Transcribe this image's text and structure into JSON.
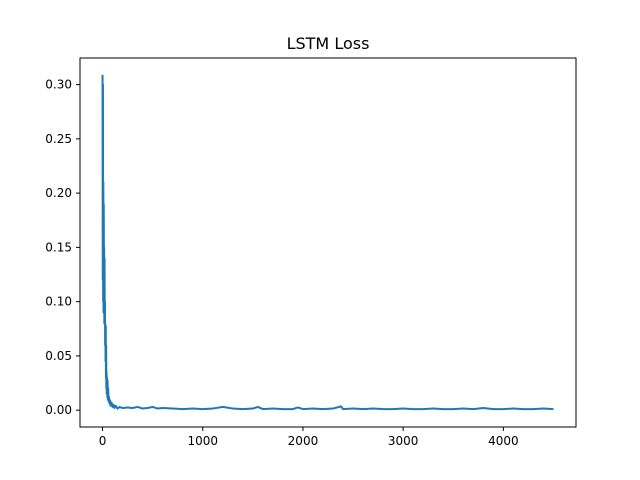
{
  "chart_data": {
    "type": "line",
    "title": "LSTM Loss",
    "xlabel": "",
    "ylabel": "",
    "xlim": [
      -225,
      4725
    ],
    "ylim": [
      -0.0155,
      0.3245
    ],
    "grid": false,
    "legend": "none",
    "x_ticks": [
      0,
      1000,
      2000,
      3000,
      4000
    ],
    "x_tick_labels": [
      "0",
      "1000",
      "2000",
      "3000",
      "4000"
    ],
    "y_ticks": [
      0.0,
      0.05,
      0.1,
      0.15,
      0.2,
      0.25,
      0.3
    ],
    "y_tick_labels": [
      "0.00",
      "0.05",
      "0.10",
      "0.15",
      "0.20",
      "0.25",
      "0.30"
    ],
    "series": [
      {
        "color": "#1f77b4",
        "x": [
          0,
          2,
          4,
          6,
          8,
          10,
          12,
          14,
          16,
          18,
          20,
          22,
          24,
          26,
          28,
          30,
          32,
          34,
          36,
          38,
          40,
          42,
          45,
          48,
          50,
          53,
          56,
          60,
          65,
          70,
          75,
          80,
          90,
          100,
          110,
          120,
          130,
          150,
          170,
          200,
          250,
          300,
          350,
          400,
          450,
          500,
          550,
          600,
          700,
          800,
          900,
          1000,
          1100,
          1200,
          1300,
          1400,
          1500,
          1550,
          1600,
          1700,
          1800,
          1900,
          1950,
          2000,
          2100,
          2200,
          2300,
          2380,
          2400,
          2500,
          2600,
          2700,
          2800,
          2900,
          3000,
          3100,
          3200,
          3300,
          3400,
          3500,
          3600,
          3700,
          3800,
          3900,
          4000,
          4100,
          4200,
          4300,
          4400,
          4500
        ],
        "y": [
          0.309,
          0.12,
          0.3,
          0.1,
          0.21,
          0.09,
          0.19,
          0.11,
          0.15,
          0.08,
          0.14,
          0.085,
          0.1,
          0.06,
          0.078,
          0.045,
          0.078,
          0.03,
          0.06,
          0.02,
          0.035,
          0.015,
          0.03,
          0.012,
          0.027,
          0.01,
          0.02,
          0.008,
          0.012,
          0.006,
          0.009,
          0.004,
          0.007,
          0.003,
          0.005,
          0.002,
          0.004,
          0.0015,
          0.003,
          0.002,
          0.0025,
          0.002,
          0.003,
          0.0015,
          0.002,
          0.003,
          0.0015,
          0.002,
          0.0015,
          0.001,
          0.0015,
          0.001,
          0.0015,
          0.003,
          0.0015,
          0.001,
          0.0015,
          0.003,
          0.001,
          0.0015,
          0.001,
          0.001,
          0.0025,
          0.001,
          0.0015,
          0.001,
          0.0015,
          0.0035,
          0.001,
          0.0015,
          0.001,
          0.0015,
          0.001,
          0.001,
          0.0015,
          0.001,
          0.001,
          0.0015,
          0.001,
          0.001,
          0.0015,
          0.001,
          0.002,
          0.001,
          0.001,
          0.0015,
          0.001,
          0.001,
          0.0015,
          0.001
        ]
      }
    ]
  }
}
